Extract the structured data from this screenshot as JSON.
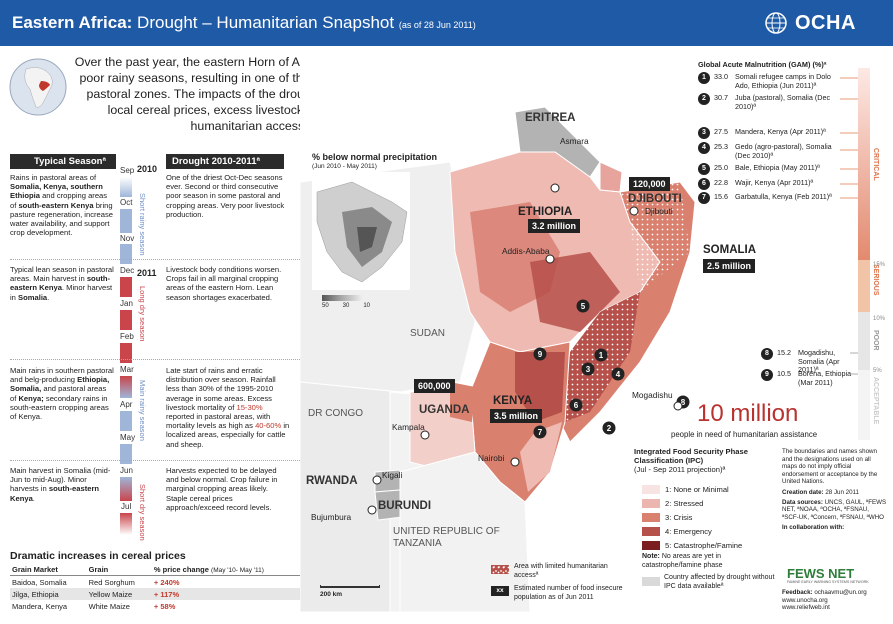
{
  "header": {
    "title_bold": "Eastern Africa:",
    "title_rest": "Drought – Humanitarian Snapshot",
    "date": "(as of 28 Jun 2011)",
    "logo": "OCHA",
    "logo_icon": "un-globe-icon"
  },
  "intro": "Over the past year, the eastern Horn of Africa has experienced two consecutive poor rainy seasons, resulting in one of the driest years since 1950/51 in many pastoral zones. The impacts of the drought have been exacerbated by high local cereal prices, excess livestock mortality, conflict and restricted humanitarian access in some areas.ª",
  "columns": {
    "typical": "Typical Seasonª",
    "drought": "Drought 2010-2011ª"
  },
  "timeline": {
    "years": [
      "2010",
      "2011"
    ],
    "months": [
      "Sep",
      "Oct",
      "Nov",
      "Dec",
      "Jan",
      "Feb",
      "Mar",
      "Apr",
      "May",
      "Jun",
      "Jul"
    ],
    "seasons": [
      "Short rainy season",
      "Long dry season",
      "Main rainy season",
      "Short dry season"
    ]
  },
  "typical_season": [
    {
      "pre": "Rains in pastoral areas of ",
      "b1": "Somalia, Kenya, southern Ethiopia",
      "post": " and cropping areas of ",
      "b2": "south-eastern Kenya",
      "tail": " bring pasture regeneration, increase water availability, and support crop development."
    },
    {
      "pre": "Typical lean season in pastoral areas. Main harvest in ",
      "b1": "south-eastern Kenya",
      "post": ". Minor harvest in ",
      "b2": "Somalia",
      "tail": "."
    },
    {
      "pre": "Main rains in southern pastoral and belg-producing ",
      "b1": "Ethiopia, Somalia,",
      "post": " and pastoral areas of ",
      "b2": "Kenya;",
      "tail": " secondary rains in south-eastern cropping areas of Kenya."
    },
    {
      "pre": "Main harvest in Somalia (mid-Jun to mid-Aug). Minor harvests in ",
      "b1": "south-eastern Kenya",
      "post": ".",
      "b2": "",
      "tail": ""
    }
  ],
  "drought_text": [
    "One of the driest Oct-Dec seasons ever. Second or third consecutive poor season in some pastoral and cropping areas. Very poor livestock production.",
    "Livestock body conditions worsen. Crops fail in all marginal cropping areas of the eastern Horn. Lean season shortages exacerbated.",
    {
      "a": "Late start of rains and erratic distribution over season. Rainfall less than 30% of the 1995-2010 average in some areas. Excess livestock mortality of ",
      "r1": "15-30%",
      "b": " reported in pastoral areas, with mortality levels as high as ",
      "r2": "40-60%",
      "c": " in localized areas, especially for cattle and sheep."
    },
    "Harvests expected to be delayed and below normal. Crop failure in marginal cropping areas likely. Staple cereal prices approach/exceed record levels."
  ],
  "cereal": {
    "title": "Dramatic increases in cereal prices",
    "headers": [
      "Grain Market",
      "Grain",
      "% price change"
    ],
    "period": "(May '10- May '11)",
    "rows": [
      {
        "market": "Baidoa, Somalia",
        "grain": "Red Sorghum",
        "change": "+ 240%"
      },
      {
        "market": "Jilga, Ethiopia",
        "grain": "Yellow Maize",
        "change": "+ 117%"
      },
      {
        "market": "Mandera, Kenya",
        "grain": "White Maize",
        "change": "+ 58%"
      }
    ]
  },
  "inset": {
    "title": "% below normal precipitation",
    "subtitle": "(Jun 2010 - May 2011)",
    "ticks": [
      "50",
      "30",
      "10"
    ]
  },
  "map": {
    "countries": {
      "eritrea": "ERITREA",
      "djibouti": "DJIBOUTI",
      "ethiopia": "ETHIOPIA",
      "somalia": "SOMALIA",
      "kenya": "KENYA",
      "uganda": "UGANDA",
      "sudan": "SUDAN",
      "drcongo": "DR CONGO",
      "rwanda": "RWANDA",
      "burundi": "BURUNDI",
      "tanzania": "UNITED REPUBLIC OF TANZANIA"
    },
    "cities": {
      "asmara": "Asmara",
      "djibouti": "Djibouti",
      "addis": "Addis-Ababa",
      "mogadishu": "Mogadishu",
      "nairobi": "Nairobi",
      "kampala": "Kampala",
      "kigali": "Kigali",
      "bujumbura": "Bujumbura"
    },
    "populations": {
      "djibouti": "120,000",
      "ethiopia": "3.2 million",
      "somalia": "2.5 million",
      "uganda": "600,000",
      "kenya": "3.5 million"
    },
    "scale": "200 km"
  },
  "gam": {
    "title": "Global Acute Malnutrition (GAM) (%)ª",
    "items": [
      {
        "n": "1",
        "v": "33.0",
        "t": "Somali refugee camps in Dolo Ado, Ethiopia",
        "d": "(Jun 2011)ª"
      },
      {
        "n": "2",
        "v": "30.7",
        "t": "Juba (pastoral), Somalia",
        "d": "(Dec 2010)ª"
      },
      {
        "n": "3",
        "v": "27.5",
        "t": "Mandera, Kenya",
        "d": "(Apr 2011)ª"
      },
      {
        "n": "4",
        "v": "25.3",
        "t": "Gedo (agro-pastoral), Somalia",
        "d": "(Dec 2010)ª"
      },
      {
        "n": "5",
        "v": "25.0",
        "t": "Bale, Ethiopia",
        "d": "(May 2011)ª"
      },
      {
        "n": "6",
        "v": "22.8",
        "t": "Wajir, Kenya",
        "d": "(Apr 2011)ª"
      },
      {
        "n": "7",
        "v": "15.6",
        "t": "Garbatulla, Kenya",
        "d": "(Feb 2011)ª"
      },
      {
        "n": "8",
        "v": "15.2",
        "t": "Mogadishu, Somalia",
        "d": "(Apr 2011)ª"
      },
      {
        "n": "9",
        "v": "10.5",
        "t": "Borena, Ethiopia",
        "d": "(Mar 2011)"
      }
    ],
    "scale_labels": [
      "CRITICAL",
      "SERIOUS",
      "POOR",
      "ACCEPTABLE"
    ],
    "scale_pcts": [
      "15%",
      "10%",
      "5%"
    ]
  },
  "total": {
    "value": "10 million",
    "label": "people in need of humanitarian assistance"
  },
  "ipc": {
    "title": "Integrated Food Security Phase Classification (IPC)",
    "subtitle": "(Jul - Sep 2011 projection)ª",
    "phases": [
      {
        "label": "1: None or Minimal",
        "color": "#f7e3e1"
      },
      {
        "label": "2: Stressed",
        "color": "#ecb6b0"
      },
      {
        "label": "3: Crisis",
        "color": "#d9806f"
      },
      {
        "label": "4: Emergency",
        "color": "#b6504a"
      },
      {
        "label": "5: Catastrophe/Famine",
        "color": "#7a1e1f"
      }
    ],
    "note_bold": "Note:",
    "note": " No areas are yet in catastrophe/famine phase",
    "country_affected": "Country affected by drought without IPC data availableª",
    "area_limited": "Area with limited humanitarian accessª",
    "xx_label": "Estimated number of food insecure population as of Jun 2011",
    "xx": "xx"
  },
  "info": {
    "disclaimer": "The boundaries and names shown and the designations used on all maps do not imply official endorsement or acceptance by the United Nations.",
    "creation_label": "Creation date:",
    "creation": "28 Jun 2011",
    "sources_label": "Data sources:",
    "sources": "UNCS, GAUL, ªFEWS NET, ªNOAA, ªOCHA, ªFSNAU, ªSCF-UK, ªConcern, ªFSNAU, ªWHO",
    "collab": "In collaboration with:",
    "fews": "FEWS NET",
    "fews_sub": "FAMINE EARLY WARNING SYSTEMS NETWORK",
    "feedback_label": "Feedback:",
    "feedback": "ochaavmu@un.org",
    "links": [
      "www.unocha.org",
      "www.reliefweb.int"
    ]
  }
}
